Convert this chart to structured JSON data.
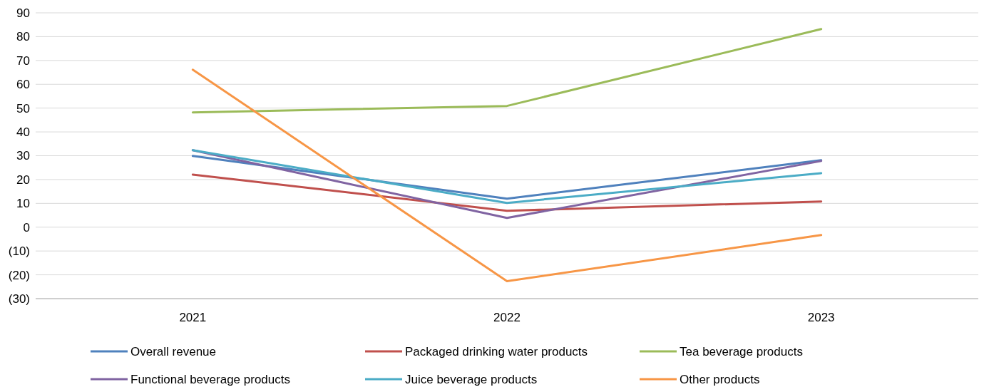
{
  "chart_data": {
    "type": "line",
    "categories": [
      "2021",
      "2022",
      "2023"
    ],
    "series": [
      {
        "name": "Overall revenue",
        "color": "#4f81bd",
        "values": [
          29.9,
          12.0,
          28.1
        ]
      },
      {
        "name": "Packaged drinking water products",
        "color": "#c0504d",
        "values": [
          22.1,
          6.9,
          10.8
        ]
      },
      {
        "name": "Tea beverage products",
        "color": "#9bbb59",
        "values": [
          48.2,
          50.9,
          83.2
        ]
      },
      {
        "name": "Functional beverage products",
        "color": "#8064a2",
        "values": [
          32.3,
          3.9,
          27.8
        ]
      },
      {
        "name": "Juice beverage products",
        "color": "#4bacc6",
        "values": [
          32.3,
          10.2,
          22.7
        ]
      },
      {
        "name": "Other products",
        "color": "#f79646",
        "values": [
          66.1,
          -22.7,
          -3.3
        ]
      }
    ],
    "ylim": [
      -30,
      90
    ],
    "yticks": [
      {
        "value": -30,
        "label": "(30)"
      },
      {
        "value": -20,
        "label": "(20)"
      },
      {
        "value": -10,
        "label": "(10)"
      },
      0,
      10,
      20,
      30,
      40,
      50,
      60,
      70,
      80,
      90
    ],
    "grid": "y",
    "legend": "bottom",
    "marker": "none",
    "line_style": "solid"
  }
}
